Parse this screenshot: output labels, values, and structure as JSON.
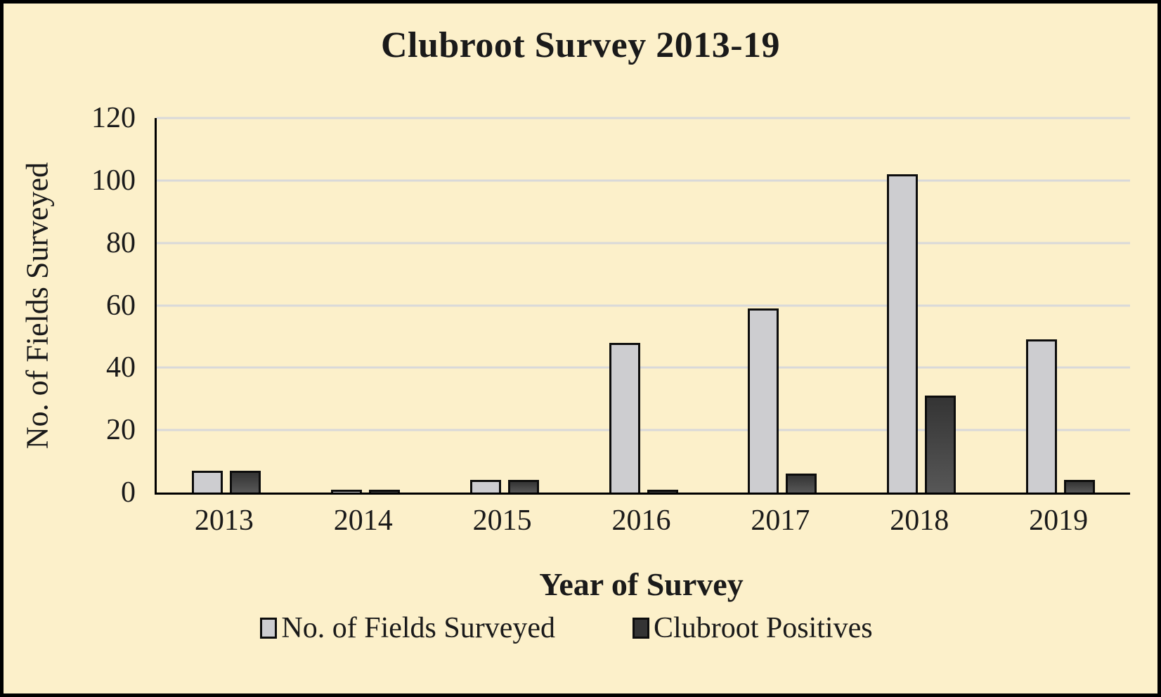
{
  "title": "Clubroot Survey 2013-19",
  "chart_data": {
    "type": "bar",
    "title": "Clubroot Survey 2013-19",
    "categories": [
      "2013",
      "2014",
      "2015",
      "2016",
      "2017",
      "2018",
      "2019"
    ],
    "series": [
      {
        "name": "No. of Fields Surveyed",
        "values": [
          7,
          1,
          4,
          48,
          59,
          102,
          49
        ]
      },
      {
        "name": "Clubroot Positives",
        "values": [
          7,
          1,
          4,
          1,
          6,
          31,
          4
        ]
      }
    ],
    "xlabel": "Year of Survey",
    "ylabel": "No. of Fields Surveyed",
    "ylim": [
      0,
      120
    ],
    "yticks": [
      0,
      20,
      40,
      60,
      80,
      100,
      120
    ],
    "grid": "horizontal",
    "legend_position": "bottom"
  },
  "colors": {
    "background": "#FCF0CA",
    "series_1_fill": "#CDCDD0",
    "series_2_fill_top": "#343434",
    "series_2_fill_bottom": "#575757",
    "bar_border": "#0d0d0d",
    "gridline": "#D9D9D9",
    "axis": "#000000",
    "text": "#1a1a1a"
  }
}
